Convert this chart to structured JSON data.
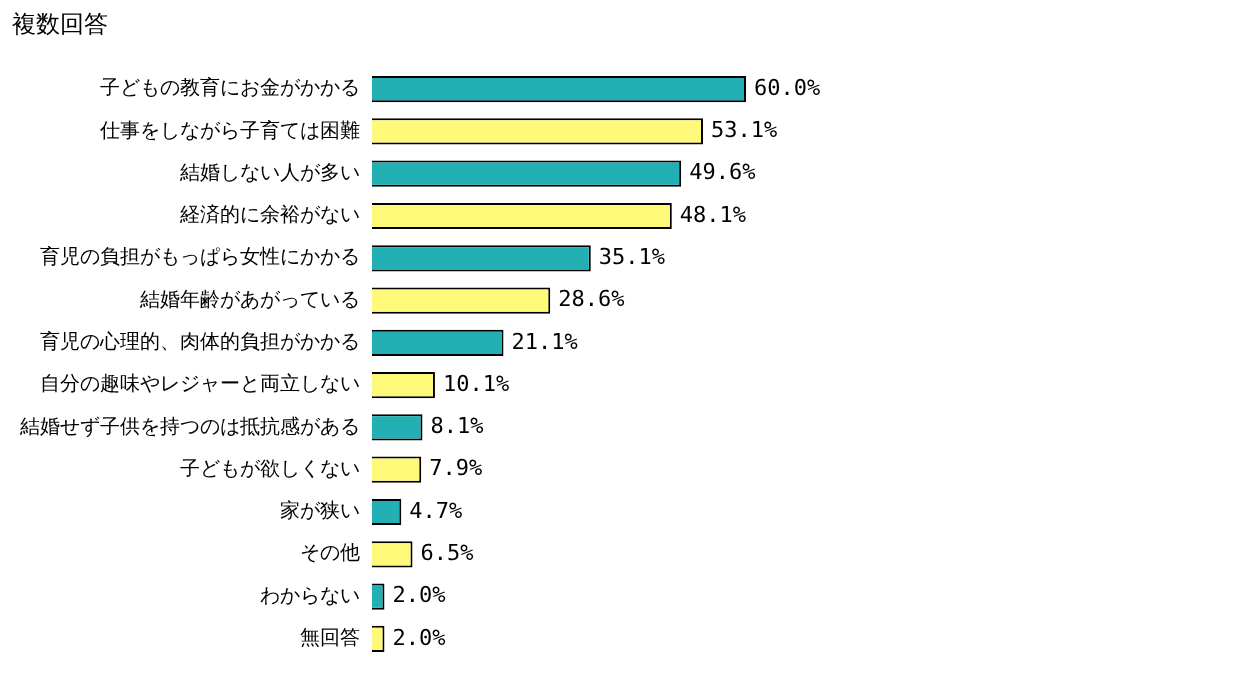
{
  "chart_data": {
    "type": "bar",
    "orientation": "horizontal",
    "title": "複数回答",
    "categories": [
      "子どもの教育にお金がかかる",
      "仕事をしながら子育ては困難",
      "結婚しない人が多い",
      "経済的に余裕がない",
      "育児の負担がもっぱら女性にかかる",
      "結婚年齢があがっている",
      "育児の心理的、肉体的負担がかかる",
      "自分の趣味やレジャーと両立しない",
      "結婚せず子供を持つのは抵抗感がある",
      "子どもが欲しくない",
      "家が狭い",
      "その他",
      "わからない",
      "無回答"
    ],
    "values": [
      60.0,
      53.1,
      49.6,
      48.1,
      35.1,
      28.6,
      21.1,
      10.1,
      8.1,
      7.9,
      4.7,
      6.5,
      2.0,
      2.0
    ],
    "colors": [
      "#22b0b5",
      "#fff97a",
      "#22b0b5",
      "#fff97a",
      "#22b0b5",
      "#fff97a",
      "#22b0b5",
      "#fff97a",
      "#22b0b5",
      "#fff97a",
      "#22b0b5",
      "#fff97a",
      "#22b0b5",
      "#fff97a"
    ],
    "value_labels": [
      "60.0%",
      "53.1%",
      "49.6%",
      "48.1%",
      "35.1%",
      "28.6%",
      "21.1%",
      "10.1%",
      "8.1%",
      "7.9%",
      "4.7%",
      "6.5%",
      "2.0%",
      "2.0%"
    ],
    "grid": false,
    "legend": false,
    "tick_labels": "y"
  }
}
